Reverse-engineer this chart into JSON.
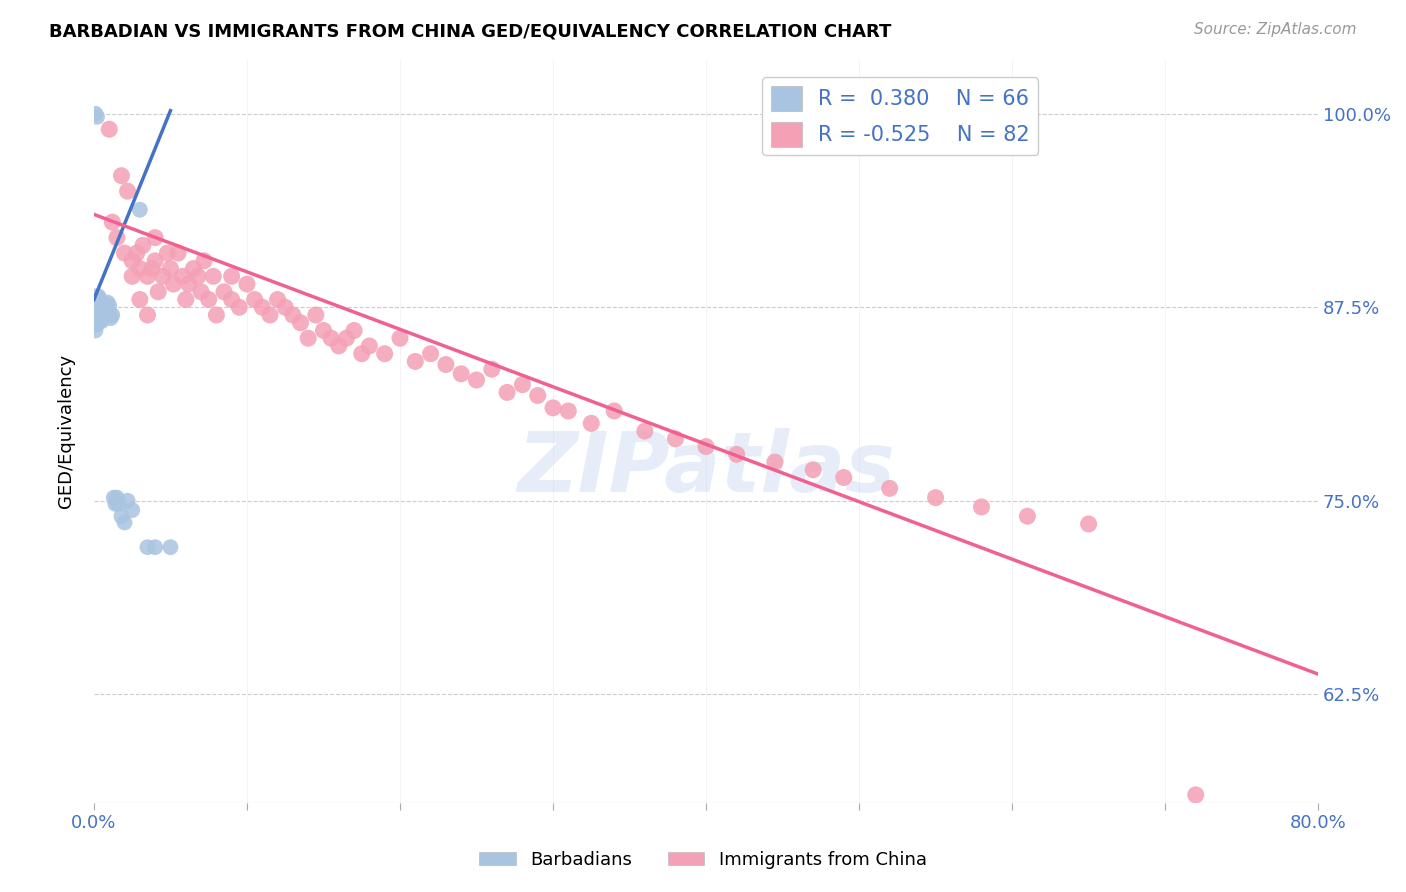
{
  "title": "BARBADIAN VS IMMIGRANTS FROM CHINA GED/EQUIVALENCY CORRELATION CHART",
  "source": "Source: ZipAtlas.com",
  "ylabel": "GED/Equivalency",
  "ytick_labels": [
    "62.5%",
    "75.0%",
    "87.5%",
    "100.0%"
  ],
  "ytick_values": [
    0.625,
    0.75,
    0.875,
    1.0
  ],
  "xlim": [
    0.0,
    0.8
  ],
  "ylim": [
    0.555,
    1.035
  ],
  "legend_R1": "0.380",
  "legend_N1": "66",
  "legend_R2": "-0.525",
  "legend_N2": "82",
  "color_barbadian": "#a8c4e0",
  "color_china": "#f4a0b5",
  "color_line_barbadian": "#4472c4",
  "color_line_china": "#f06090",
  "color_blue_text": "#4472c4",
  "watermark": "ZIPatlas",
  "barb_line_x": [
    0.0,
    0.05
  ],
  "barb_line_y": [
    0.88,
    1.002
  ],
  "china_line_x": [
    0.0,
    0.8
  ],
  "china_line_y": [
    0.935,
    0.638
  ],
  "barbadian_x": [
    0.001,
    0.001,
    0.001,
    0.001,
    0.001,
    0.001,
    0.001,
    0.001,
    0.001,
    0.001,
    0.002,
    0.002,
    0.002,
    0.002,
    0.002,
    0.002,
    0.002,
    0.002,
    0.003,
    0.003,
    0.003,
    0.003,
    0.003,
    0.003,
    0.003,
    0.004,
    0.004,
    0.004,
    0.004,
    0.004,
    0.004,
    0.005,
    0.005,
    0.005,
    0.005,
    0.005,
    0.006,
    0.006,
    0.006,
    0.006,
    0.007,
    0.007,
    0.007,
    0.008,
    0.008,
    0.008,
    0.009,
    0.009,
    0.01,
    0.01,
    0.011,
    0.012,
    0.013,
    0.014,
    0.015,
    0.016,
    0.018,
    0.02,
    0.022,
    0.025,
    0.03,
    0.035,
    0.04,
    0.05,
    0.001,
    0.002
  ],
  "barbadian_y": [
    0.876,
    0.878,
    0.88,
    0.882,
    0.868,
    0.87,
    0.872,
    0.864,
    0.866,
    0.86,
    0.878,
    0.882,
    0.876,
    0.87,
    0.868,
    0.874,
    0.878,
    0.864,
    0.882,
    0.876,
    0.87,
    0.878,
    0.866,
    0.874,
    0.88,
    0.87,
    0.876,
    0.874,
    0.868,
    0.872,
    0.88,
    0.876,
    0.87,
    0.878,
    0.872,
    0.866,
    0.876,
    0.87,
    0.874,
    0.868,
    0.87,
    0.876,
    0.872,
    0.874,
    0.87,
    0.876,
    0.87,
    0.878,
    0.87,
    0.876,
    0.868,
    0.87,
    0.752,
    0.748,
    0.752,
    0.748,
    0.74,
    0.736,
    0.75,
    0.744,
    0.938,
    0.72,
    0.72,
    0.72,
    1.0,
    0.998
  ],
  "china_x": [
    0.01,
    0.012,
    0.015,
    0.018,
    0.02,
    0.022,
    0.025,
    0.025,
    0.028,
    0.03,
    0.03,
    0.032,
    0.035,
    0.035,
    0.038,
    0.04,
    0.04,
    0.042,
    0.045,
    0.048,
    0.05,
    0.052,
    0.055,
    0.058,
    0.06,
    0.062,
    0.065,
    0.068,
    0.07,
    0.072,
    0.075,
    0.078,
    0.08,
    0.085,
    0.09,
    0.09,
    0.095,
    0.1,
    0.105,
    0.11,
    0.115,
    0.12,
    0.125,
    0.13,
    0.135,
    0.14,
    0.145,
    0.15,
    0.155,
    0.16,
    0.165,
    0.17,
    0.175,
    0.18,
    0.19,
    0.2,
    0.21,
    0.22,
    0.23,
    0.24,
    0.25,
    0.26,
    0.27,
    0.28,
    0.29,
    0.3,
    0.31,
    0.325,
    0.34,
    0.36,
    0.38,
    0.4,
    0.42,
    0.445,
    0.47,
    0.49,
    0.52,
    0.55,
    0.58,
    0.61,
    0.65,
    0.72
  ],
  "china_y": [
    0.99,
    0.93,
    0.92,
    0.96,
    0.91,
    0.95,
    0.905,
    0.895,
    0.91,
    0.9,
    0.88,
    0.915,
    0.895,
    0.87,
    0.9,
    0.92,
    0.905,
    0.885,
    0.895,
    0.91,
    0.9,
    0.89,
    0.91,
    0.895,
    0.88,
    0.89,
    0.9,
    0.895,
    0.885,
    0.905,
    0.88,
    0.895,
    0.87,
    0.885,
    0.88,
    0.895,
    0.875,
    0.89,
    0.88,
    0.875,
    0.87,
    0.88,
    0.875,
    0.87,
    0.865,
    0.855,
    0.87,
    0.86,
    0.855,
    0.85,
    0.855,
    0.86,
    0.845,
    0.85,
    0.845,
    0.855,
    0.84,
    0.845,
    0.838,
    0.832,
    0.828,
    0.835,
    0.82,
    0.825,
    0.818,
    0.81,
    0.808,
    0.8,
    0.808,
    0.795,
    0.79,
    0.785,
    0.78,
    0.775,
    0.77,
    0.765,
    0.758,
    0.752,
    0.746,
    0.74,
    0.735,
    0.56
  ]
}
